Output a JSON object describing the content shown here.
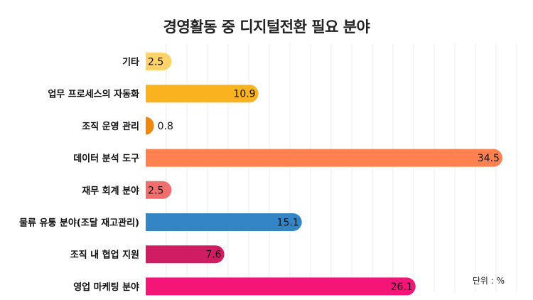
{
  "chart_data": {
    "type": "bar",
    "orientation": "horizontal",
    "title": "경영활동 중 디지털전환 필요 분야",
    "unit": "단위 : %",
    "xlim": [
      0,
      35
    ],
    "grid": true,
    "categories": [
      "기타",
      "업무 프로세스의 자동화",
      "조직 운영 관리",
      "데이터 분석 도구",
      "재무 회계 분야",
      "물류 유통 분야(조달 재고관리)",
      "조직 내 협업 지원",
      "영업 마케팅 분야"
    ],
    "values": [
      2.5,
      10.9,
      0.8,
      34.5,
      2.5,
      15.1,
      7.6,
      26.1
    ],
    "value_labels": [
      "2.5",
      "10.9",
      "0.8",
      "34.5",
      "2.5",
      "15.1",
      "7.6",
      "26.1"
    ],
    "colors": [
      "#FCD26B",
      "#FAB21E",
      "#F0870E",
      "#FF8150",
      "#F06E6E",
      "#3385C6",
      "#D01C62",
      "#F51478"
    ]
  }
}
